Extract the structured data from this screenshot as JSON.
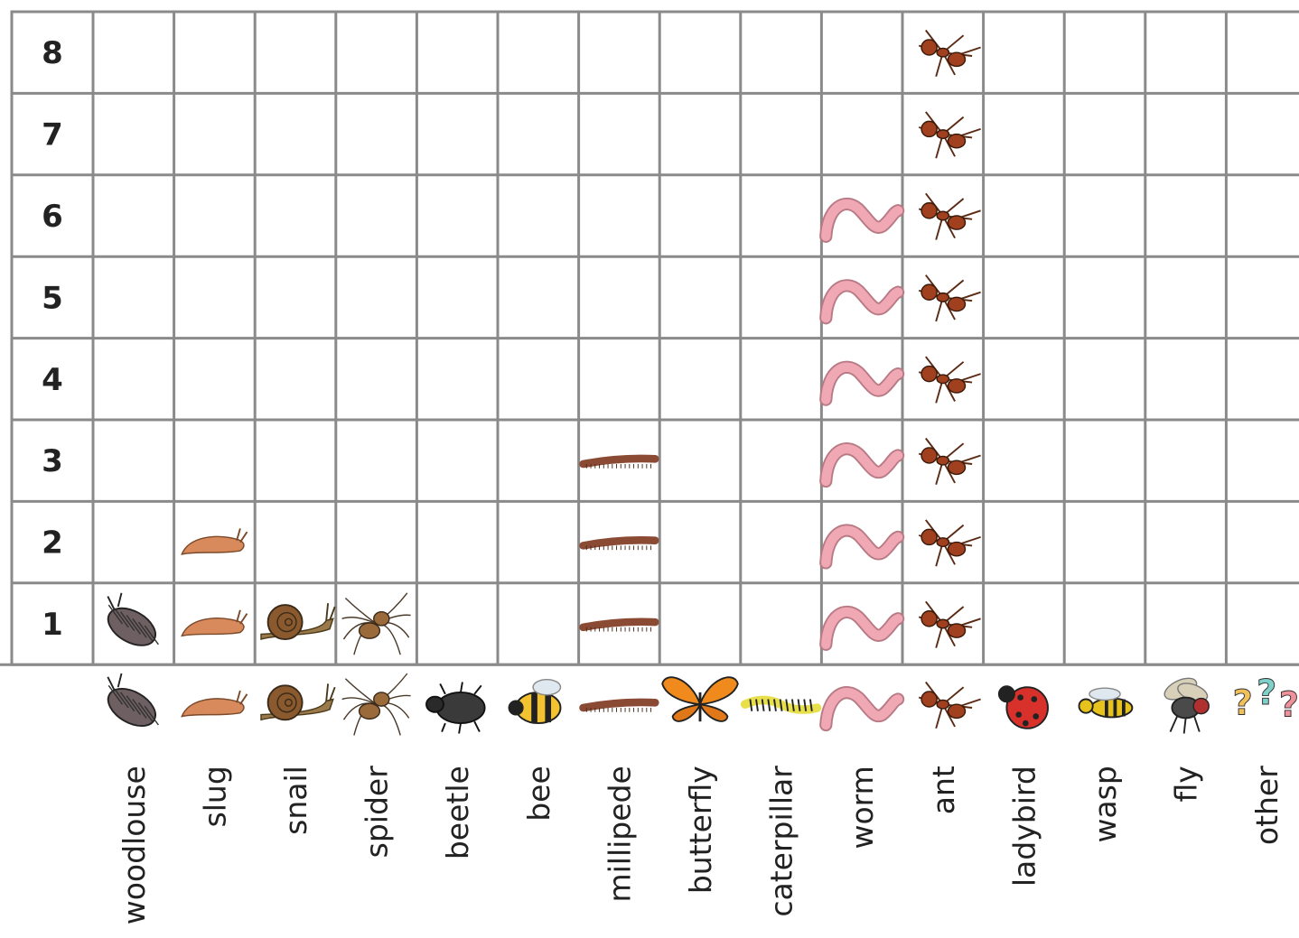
{
  "chart_data": {
    "type": "pictogram",
    "categories": [
      "woodlouse",
      "slug",
      "snail",
      "spider",
      "beetle",
      "bee",
      "millipede",
      "butterfly",
      "caterpillar",
      "worm",
      "ant",
      "ladybird",
      "wasp",
      "fly",
      "other"
    ],
    "values": [
      1,
      2,
      1,
      1,
      0,
      0,
      3,
      0,
      0,
      6,
      8,
      0,
      0,
      0,
      0
    ],
    "y_tick_labels": [
      "1",
      "2",
      "3",
      "4",
      "5",
      "6",
      "7",
      "8"
    ],
    "ylim": [
      0,
      8
    ],
    "grid": true,
    "icons": [
      "woodlouse-icon",
      "slug-icon",
      "snail-icon",
      "spider-icon",
      "beetle-icon",
      "bee-icon",
      "millipede-icon",
      "butterfly-icon",
      "caterpillar-icon",
      "worm-icon",
      "ant-icon",
      "ladybird-icon",
      "wasp-icon",
      "fly-icon",
      "question-marks-icon"
    ],
    "colors": {
      "grid": "#8a8a8a",
      "woodlouse": "#6e5f62",
      "slug": "#d98a5c",
      "snail": "#8a5a2e",
      "spider": "#9b6a3a",
      "beetle": "#3a3a3a",
      "bee": "#f2c230",
      "millipede": "#8a4a34",
      "butterfly": "#f08a1c",
      "caterpillar": "#e8e04a",
      "worm": "#f0a8b4",
      "ant": "#a0401e",
      "ladybird": "#d8312b",
      "wasp": "#e8c21c",
      "fly": "#4a4a4a",
      "other": "#f0c05a"
    }
  }
}
